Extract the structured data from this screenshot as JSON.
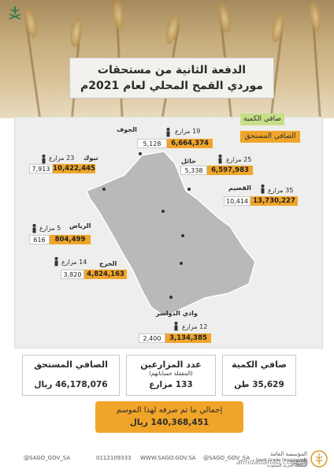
{
  "title": {
    "line1": "الدفعة الثانية من مستحقات",
    "line2": "موردي القمح المحلي لعام 2021م"
  },
  "legend": {
    "quantity": "صافي الكمية",
    "amount": "الصافي المستحق"
  },
  "regions": [
    {
      "key": "jouf",
      "name": "الجوف",
      "farmers": "19 مزارع",
      "quantity": "5,128",
      "amount": "6,664,374"
    },
    {
      "key": "tabuk",
      "name": "تبوك",
      "farmers": "23 مزارع",
      "quantity": "7,913",
      "amount": "10,422,445"
    },
    {
      "key": "hail",
      "name": "حائل",
      "farmers": "25 مزارع",
      "quantity": "5,338",
      "amount": "6,597,983"
    },
    {
      "key": "qassim",
      "name": "القصيم",
      "farmers": "35 مزارع",
      "quantity": "10,414",
      "amount": "13,730,227"
    },
    {
      "key": "riyadh",
      "name": "الرياض",
      "farmers": "5 مزارع",
      "quantity": "616",
      "amount": "804,499"
    },
    {
      "key": "kharj",
      "name": "الخرج",
      "farmers": "14 مزارع",
      "quantity": "3,820",
      "amount": "4,824,163"
    },
    {
      "key": "dawasir",
      "name": "وادي الدواسر",
      "farmers": "12 مزارع",
      "quantity": "2,400",
      "amount": "3,134,385"
    }
  ],
  "summary": {
    "amount": {
      "label": "الصافي المستحق",
      "value": "46,178,076 ريال"
    },
    "farmers": {
      "label": "عدد المزارعين",
      "sub": "(المقفلة حساباتهم)",
      "value": "133 مزارع"
    },
    "quantity": {
      "label": "صافي الكمية",
      "value": "35,629 طن"
    }
  },
  "total": {
    "label": "إجمالي ما تم صرفه لهذا الموسم",
    "value": "140,368,451 ريال"
  },
  "footer": {
    "handle1": "@SAGO_GOV_SA",
    "phone": "0112109333",
    "website": "WWW.SAGO.GOV.SA",
    "handle2": "@SAGO_GOV_SA",
    "org_ar": "المؤسسة العامة للحبوب",
    "org_en": "Saudi Grains Organization (SAGO)",
    "org_ar2": "المملكة العربية السعودية"
  },
  "watermark": "almdadanab.com.sa",
  "colors": {
    "accent": "#f0a52a",
    "legend_green": "#c7df8a",
    "panel": "#eeeeec"
  }
}
